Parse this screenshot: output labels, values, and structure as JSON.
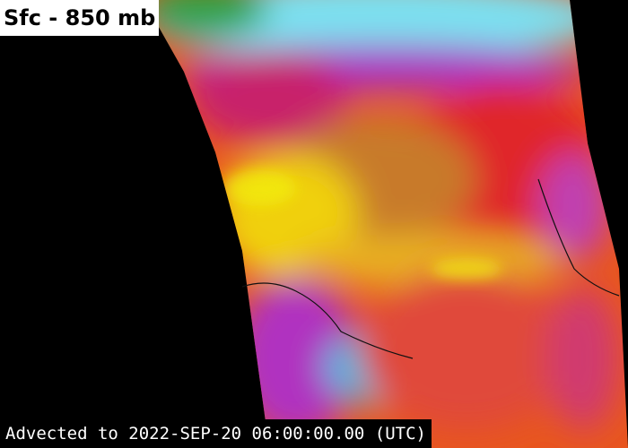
{
  "label": "Sfc - 850 mb",
  "footer": "Advected to 2022-SEP-20 06:00:00.00 (UTC)"
}
